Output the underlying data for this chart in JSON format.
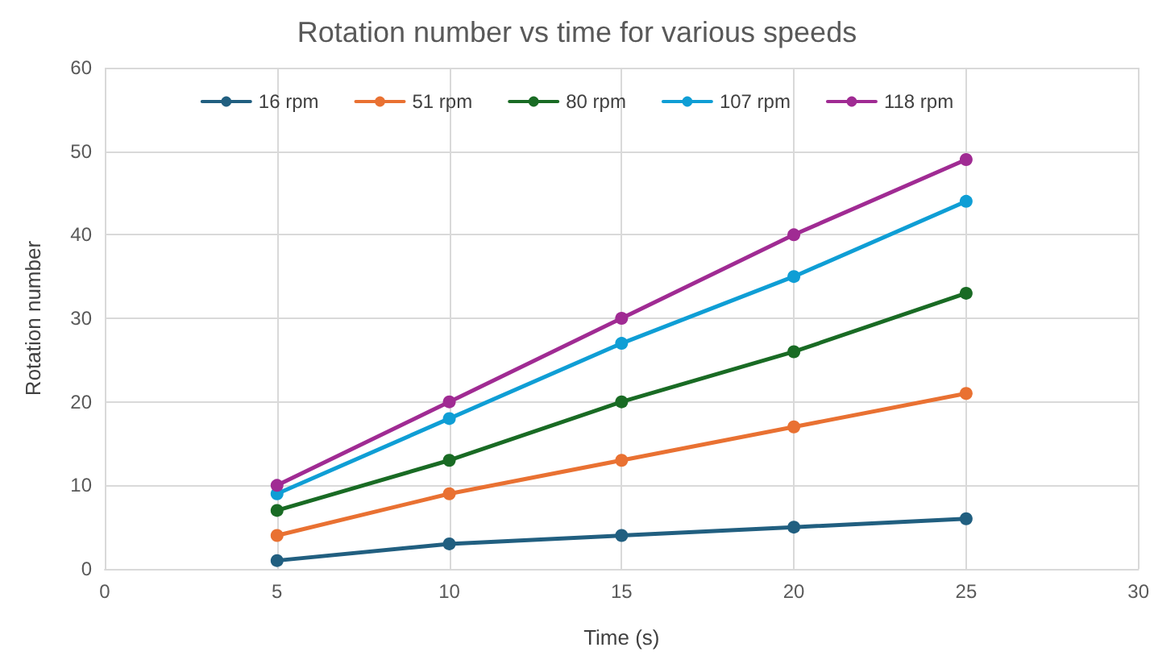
{
  "chart_data": {
    "type": "line",
    "title": "Rotation number vs time for various speeds",
    "xlabel": "Time (s)",
    "ylabel": "Rotation number",
    "x": [
      5,
      10,
      15,
      20,
      25
    ],
    "series": [
      {
        "name": "16 rpm",
        "color": "#215f80",
        "values": [
          1,
          3,
          4,
          5,
          6
        ]
      },
      {
        "name": "51 rpm",
        "color": "#e97132",
        "values": [
          4,
          9,
          13,
          17,
          21
        ]
      },
      {
        "name": "80 rpm",
        "color": "#196b24",
        "values": [
          7,
          13,
          20,
          26,
          33
        ]
      },
      {
        "name": "107 rpm",
        "color": "#0f9ed5",
        "values": [
          9,
          18,
          27,
          35,
          44
        ]
      },
      {
        "name": "118 rpm",
        "color": "#a02b93",
        "values": [
          10,
          20,
          30,
          40,
          49
        ]
      }
    ],
    "xlim": [
      0,
      30
    ],
    "xticks": [
      0,
      5,
      10,
      15,
      20,
      25,
      30
    ],
    "ylim": [
      0,
      60
    ],
    "yticks": [
      0,
      10,
      20,
      30,
      40,
      50,
      60
    ],
    "grid": true,
    "legend": "top",
    "marker": "circle",
    "line_style": "solid"
  }
}
